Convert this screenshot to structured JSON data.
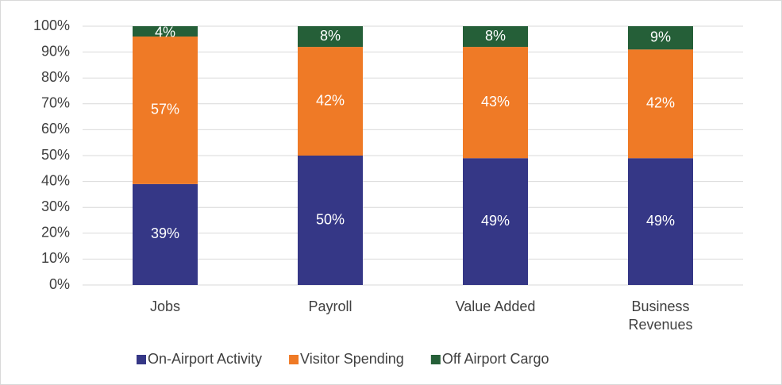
{
  "chart_data": {
    "type": "stacked_bar",
    "categories": [
      "Jobs",
      "Payroll",
      "Value Added",
      "Business Revenues"
    ],
    "series": [
      {
        "name": "On-Airport Activity",
        "color": "#353786",
        "values": [
          39,
          50,
          49,
          49
        ],
        "value_labels": [
          "39%",
          "50%",
          "49%",
          "49%"
        ]
      },
      {
        "name": "Visitor Spending",
        "color": "#ef7a26",
        "values": [
          57,
          42,
          43,
          42
        ],
        "value_labels": [
          "57%",
          "42%",
          "43%",
          "42%"
        ]
      },
      {
        "name": "Off Airport Cargo",
        "color": "#255f38",
        "values": [
          4,
          8,
          8,
          9
        ],
        "value_labels": [
          "4%",
          "8%",
          "8%",
          "9%"
        ]
      }
    ],
    "ylim": [
      0,
      100
    ],
    "yticks": [
      {
        "value": 0,
        "label": "0%"
      },
      {
        "value": 10,
        "label": "10%"
      },
      {
        "value": 20,
        "label": "20%"
      },
      {
        "value": 30,
        "label": "30%"
      },
      {
        "value": 40,
        "label": "40%"
      },
      {
        "value": 50,
        "label": "50%"
      },
      {
        "value": 60,
        "label": "60%"
      },
      {
        "value": 70,
        "label": "70%"
      },
      {
        "value": 80,
        "label": "80%"
      },
      {
        "value": 90,
        "label": "90%"
      },
      {
        "value": 100,
        "label": "100%"
      }
    ],
    "grid": true,
    "legend": "bottom"
  }
}
